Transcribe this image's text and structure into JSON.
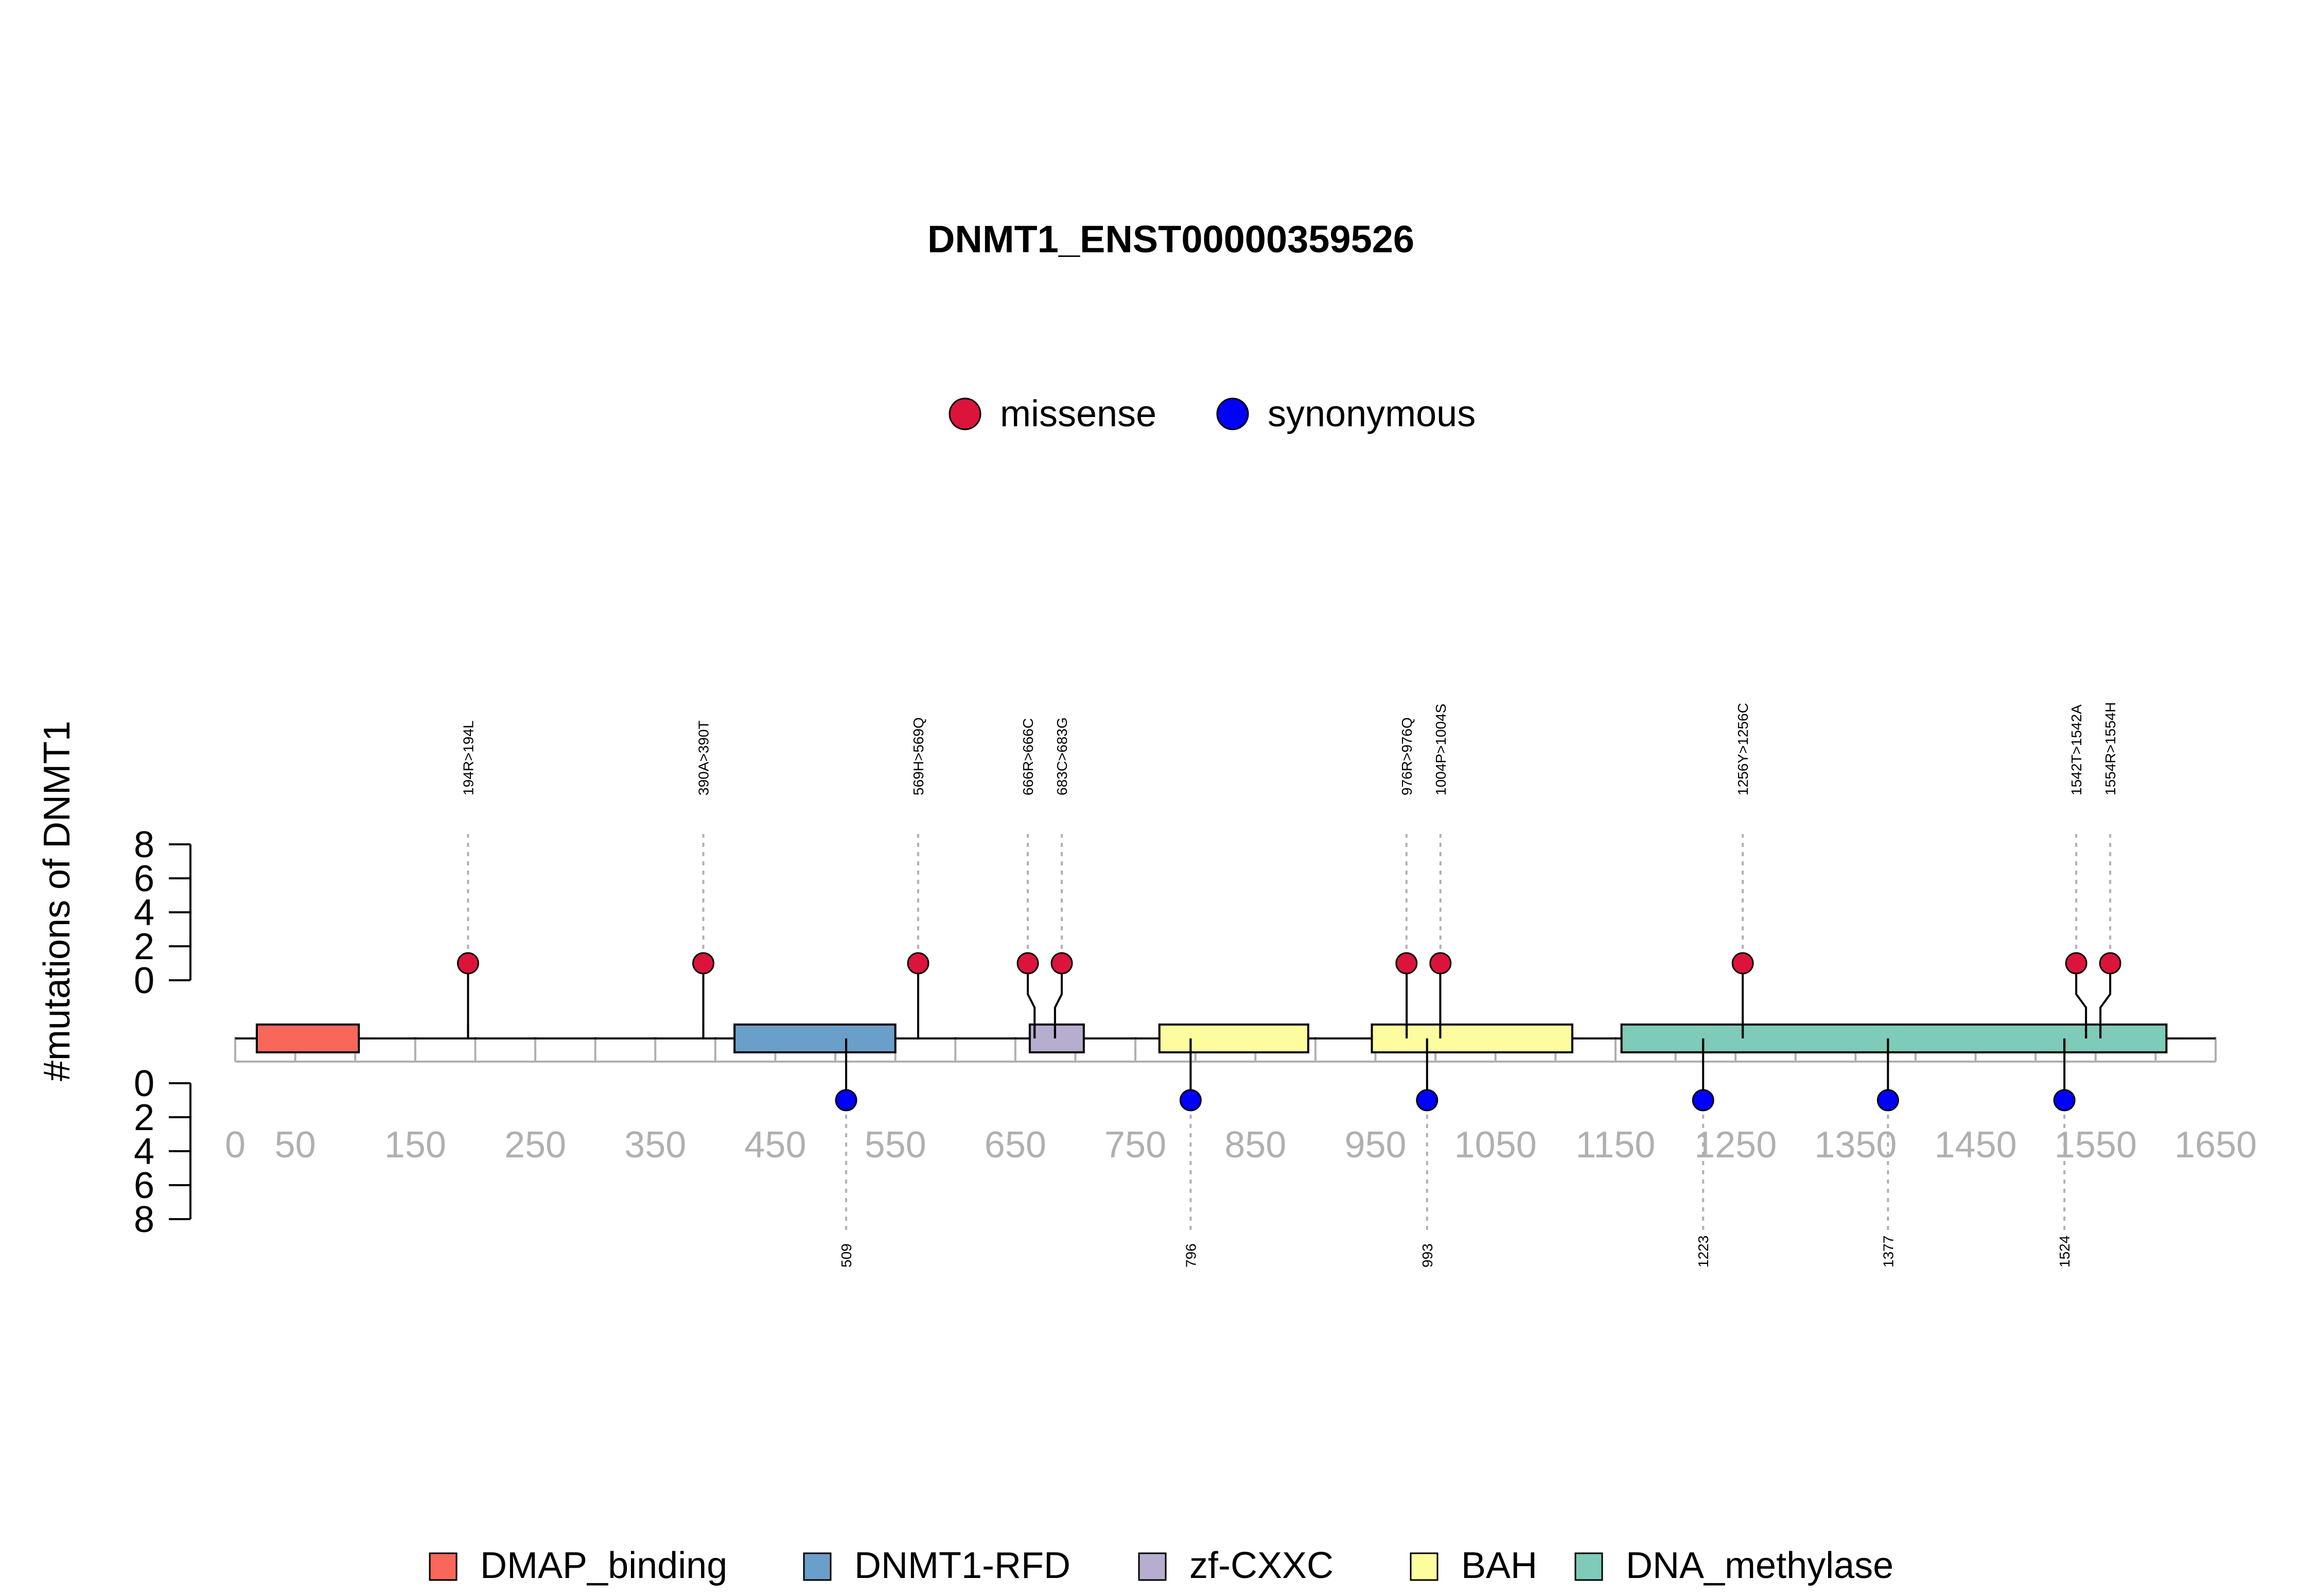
{
  "chart_data": {
    "type": "lollipop",
    "title": "DNMT1_ENST00000359526",
    "ylabel": "#mutations of DNMT1",
    "xlim": [
      0,
      1650
    ],
    "x_ticks": [
      "0",
      "50",
      "150",
      "250",
      "350",
      "450",
      "550",
      "650",
      "750",
      "850",
      "950",
      "1050",
      "1150",
      "1250",
      "1350",
      "1450",
      "1550",
      "1650"
    ],
    "y_ticks": [
      "0",
      "2",
      "4",
      "6",
      "8"
    ],
    "ylim": [
      0,
      8
    ],
    "mutation_legend": [
      {
        "name": "missense",
        "color": "#dc143c"
      },
      {
        "name": "synonymous",
        "color": "#0000ff"
      }
    ],
    "domains": [
      {
        "name": "DMAP_binding",
        "start": 18,
        "end": 103,
        "color": "#f8675a"
      },
      {
        "name": "DNMT1-RFD",
        "start": 416,
        "end": 550,
        "color": "#6a9fc9"
      },
      {
        "name": "zf-CXXC",
        "start": 662,
        "end": 707,
        "color": "#b6adcf"
      },
      {
        "name": "BAH",
        "start": 770,
        "end": 894,
        "color": "#fdfd9f"
      },
      {
        "name": "BAH",
        "start": 947,
        "end": 1114,
        "color": "#fdfd9f"
      },
      {
        "name": "DNA_methylase",
        "start": 1155,
        "end": 1609,
        "color": "#7dcbb8"
      }
    ],
    "domain_legend": [
      {
        "name": "DMAP_binding",
        "color": "#f8675a"
      },
      {
        "name": "DNMT1-RFD",
        "color": "#6a9fc9"
      },
      {
        "name": "zf-CXXC",
        "color": "#b6adcf"
      },
      {
        "name": "BAH",
        "color": "#fdfd9f"
      },
      {
        "name": "DNA_methylase",
        "color": "#7dcbb8"
      }
    ],
    "missense": [
      {
        "pos": 194,
        "label": "194R>194L",
        "count": 1
      },
      {
        "pos": 390,
        "label": "390A>390T",
        "count": 1
      },
      {
        "pos": 569,
        "label": "569H>569Q",
        "count": 1
      },
      {
        "pos": 666,
        "label": "666R>666C",
        "count": 1
      },
      {
        "pos": 683,
        "label": "683C>683G",
        "count": 1
      },
      {
        "pos": 976,
        "label": "976R>976Q",
        "count": 1
      },
      {
        "pos": 1004,
        "label": "1004P>1004S",
        "count": 1
      },
      {
        "pos": 1256,
        "label": "1256Y>1256C",
        "count": 1
      },
      {
        "pos": 1542,
        "label": "1542T>1542A",
        "count": 1
      },
      {
        "pos": 1554,
        "label": "1554R>1554H",
        "count": 1
      }
    ],
    "synonymous": [
      {
        "pos": 509,
        "label": "509",
        "count": 1
      },
      {
        "pos": 796,
        "label": "796",
        "count": 1
      },
      {
        "pos": 993,
        "label": "993",
        "count": 1
      },
      {
        "pos": 1223,
        "label": "1223",
        "count": 1
      },
      {
        "pos": 1377,
        "label": "1377",
        "count": 1
      },
      {
        "pos": 1524,
        "label": "1524",
        "count": 1
      }
    ]
  }
}
